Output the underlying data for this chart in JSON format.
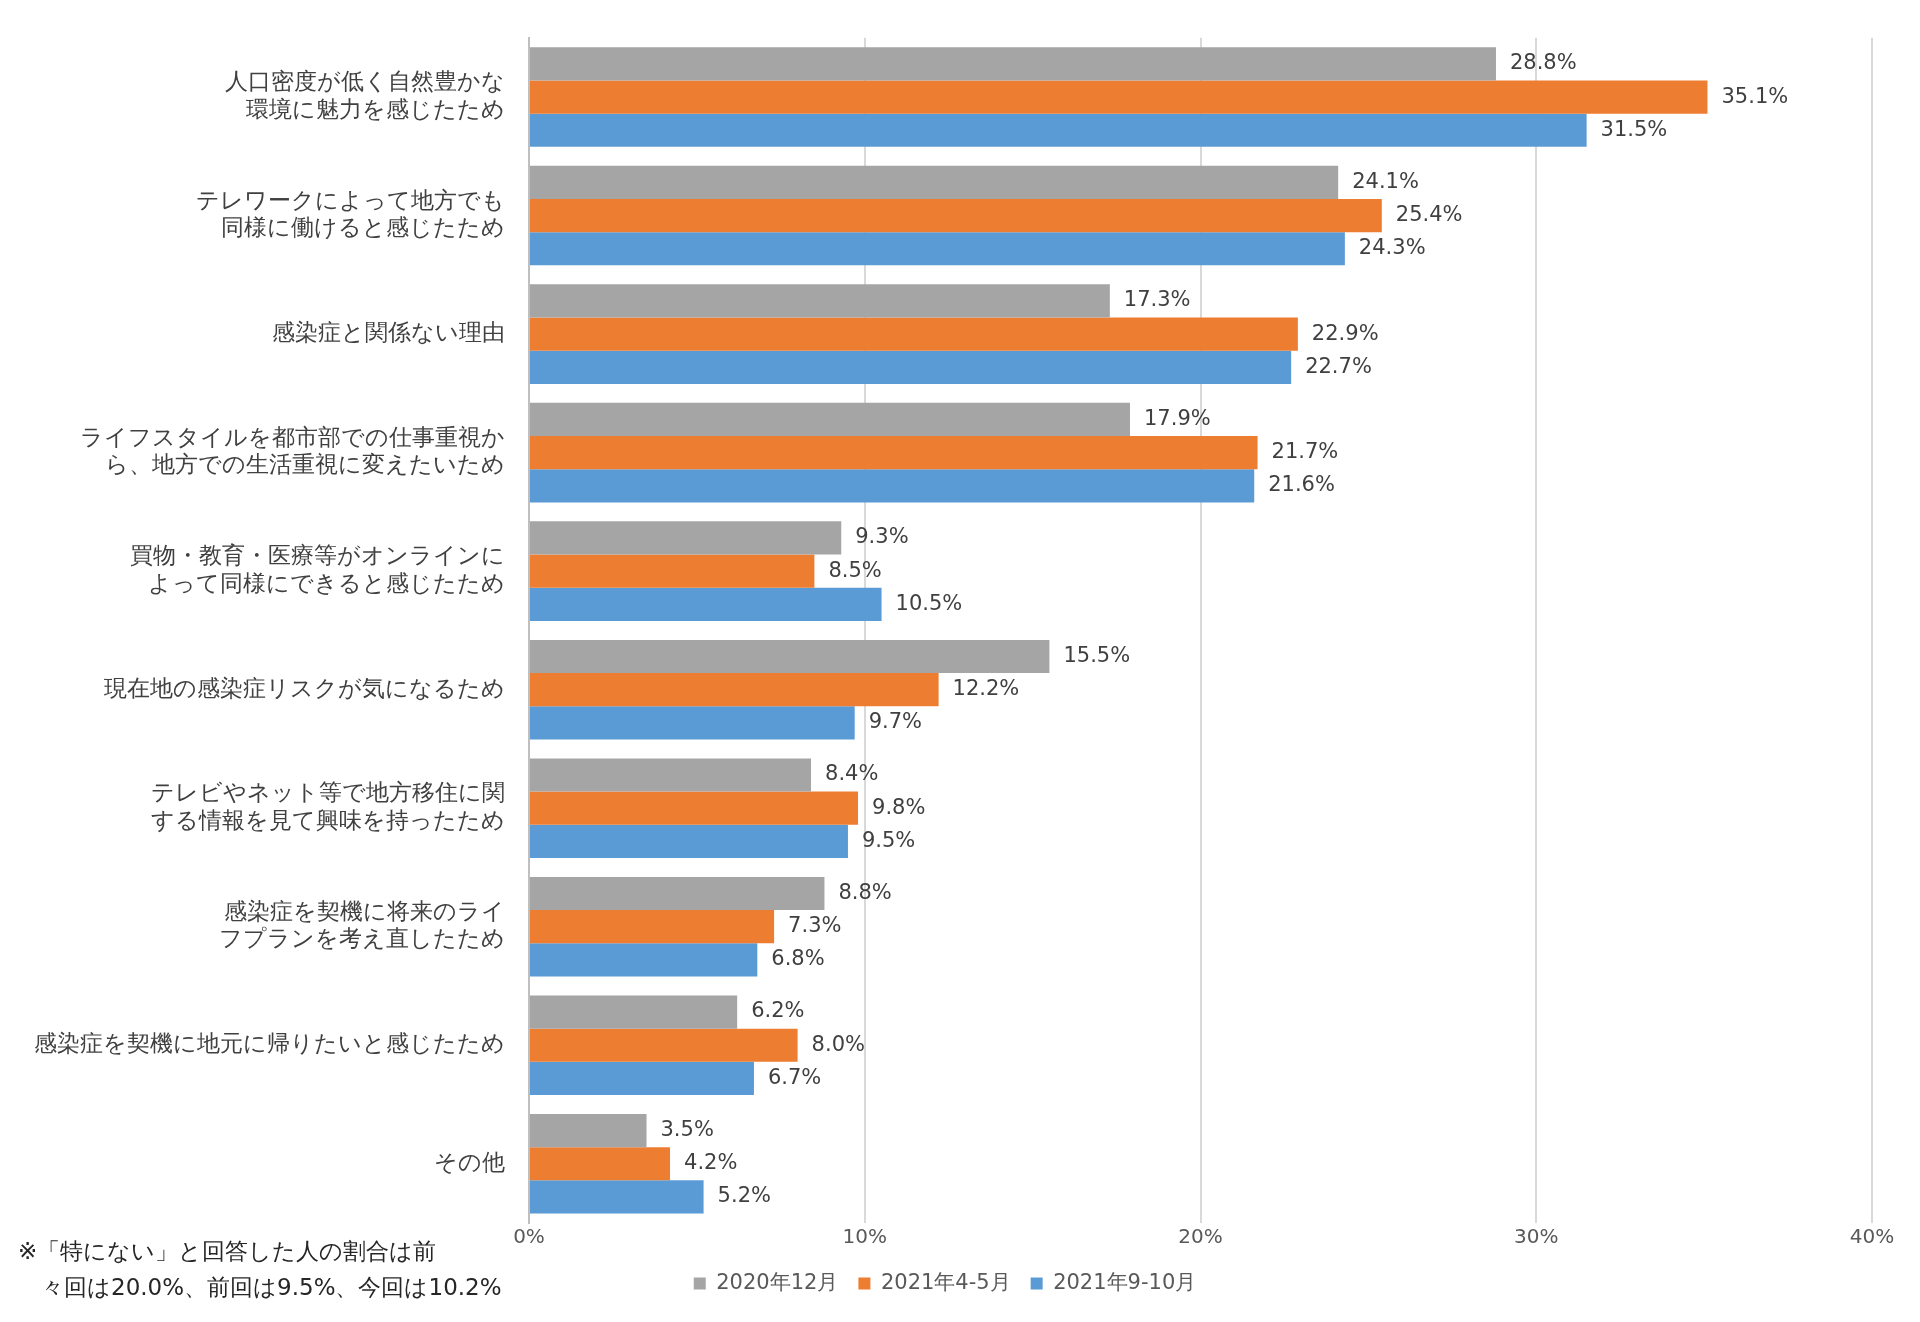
{
  "chart_data": {
    "type": "bar",
    "orientation": "horizontal",
    "categories": [
      "人口密度が低く自然豊かな環境に魅力を感じたため",
      "テレワークによって地方でも同様に働けると感じたため",
      "感染症と関係ない理由",
      "ライフスタイルを都市部での仕事重視から、地方での生活重視に変えたいため",
      "買物・教育・医療等がオンラインによって同様にできると感じたため",
      "現在地の感染症リスクが気になるため",
      "テレビやネット等で地方移住に関する情報を見て興味を持ったため",
      "感染症を契機に将来のライフプランを考え直したため",
      "感染症を契機に地元に帰りたいと感じたため",
      "その他"
    ],
    "series": [
      {
        "name": "2020年12月",
        "color": "#a5a5a5",
        "values": [
          28.8,
          24.1,
          17.3,
          17.9,
          9.3,
          15.5,
          8.4,
          8.8,
          6.2,
          3.5
        ],
        "value_labels": [
          "28.8%",
          "24.1%",
          "17.3%",
          "17.9%",
          "9.3%",
          "15.5%",
          "8.4%",
          "8.8%",
          "6.2%",
          "3.5%"
        ]
      },
      {
        "name": "2021年4-5月",
        "color": "#ed7d31",
        "values": [
          35.1,
          25.4,
          22.9,
          21.7,
          8.5,
          12.2,
          9.8,
          7.3,
          8.0,
          4.2
        ],
        "value_labels": [
          "35.1%",
          "25.4%",
          "22.9%",
          "21.7%",
          "8.5%",
          "12.2%",
          "9.8%",
          "7.3%",
          "8.0%",
          "4.2%"
        ]
      },
      {
        "name": "2021年9-10月",
        "color": "#5b9bd5",
        "values": [
          31.5,
          24.3,
          22.7,
          21.6,
          10.5,
          9.7,
          9.5,
          6.8,
          6.7,
          5.2
        ],
        "value_labels": [
          "31.5%",
          "24.3%",
          "22.7%",
          "21.6%",
          "10.5%",
          "9.7%",
          "9.5%",
          "6.8%",
          "6.7%",
          "5.2%"
        ]
      }
    ],
    "xlim": [
      0,
      40
    ],
    "xticks": [
      {
        "value": 0,
        "label": "0%"
      },
      {
        "value": 10,
        "label": "10%"
      },
      {
        "value": 20,
        "label": "20%"
      },
      {
        "value": 30,
        "label": "30%"
      },
      {
        "value": 40,
        "label": "40%"
      }
    ],
    "grid": "x",
    "legend": "bottom",
    "annotations": [
      "※「特にない」と回答した人の割合は前々回は20.0%、前回は9.5%、今回は10.2%"
    ]
  }
}
